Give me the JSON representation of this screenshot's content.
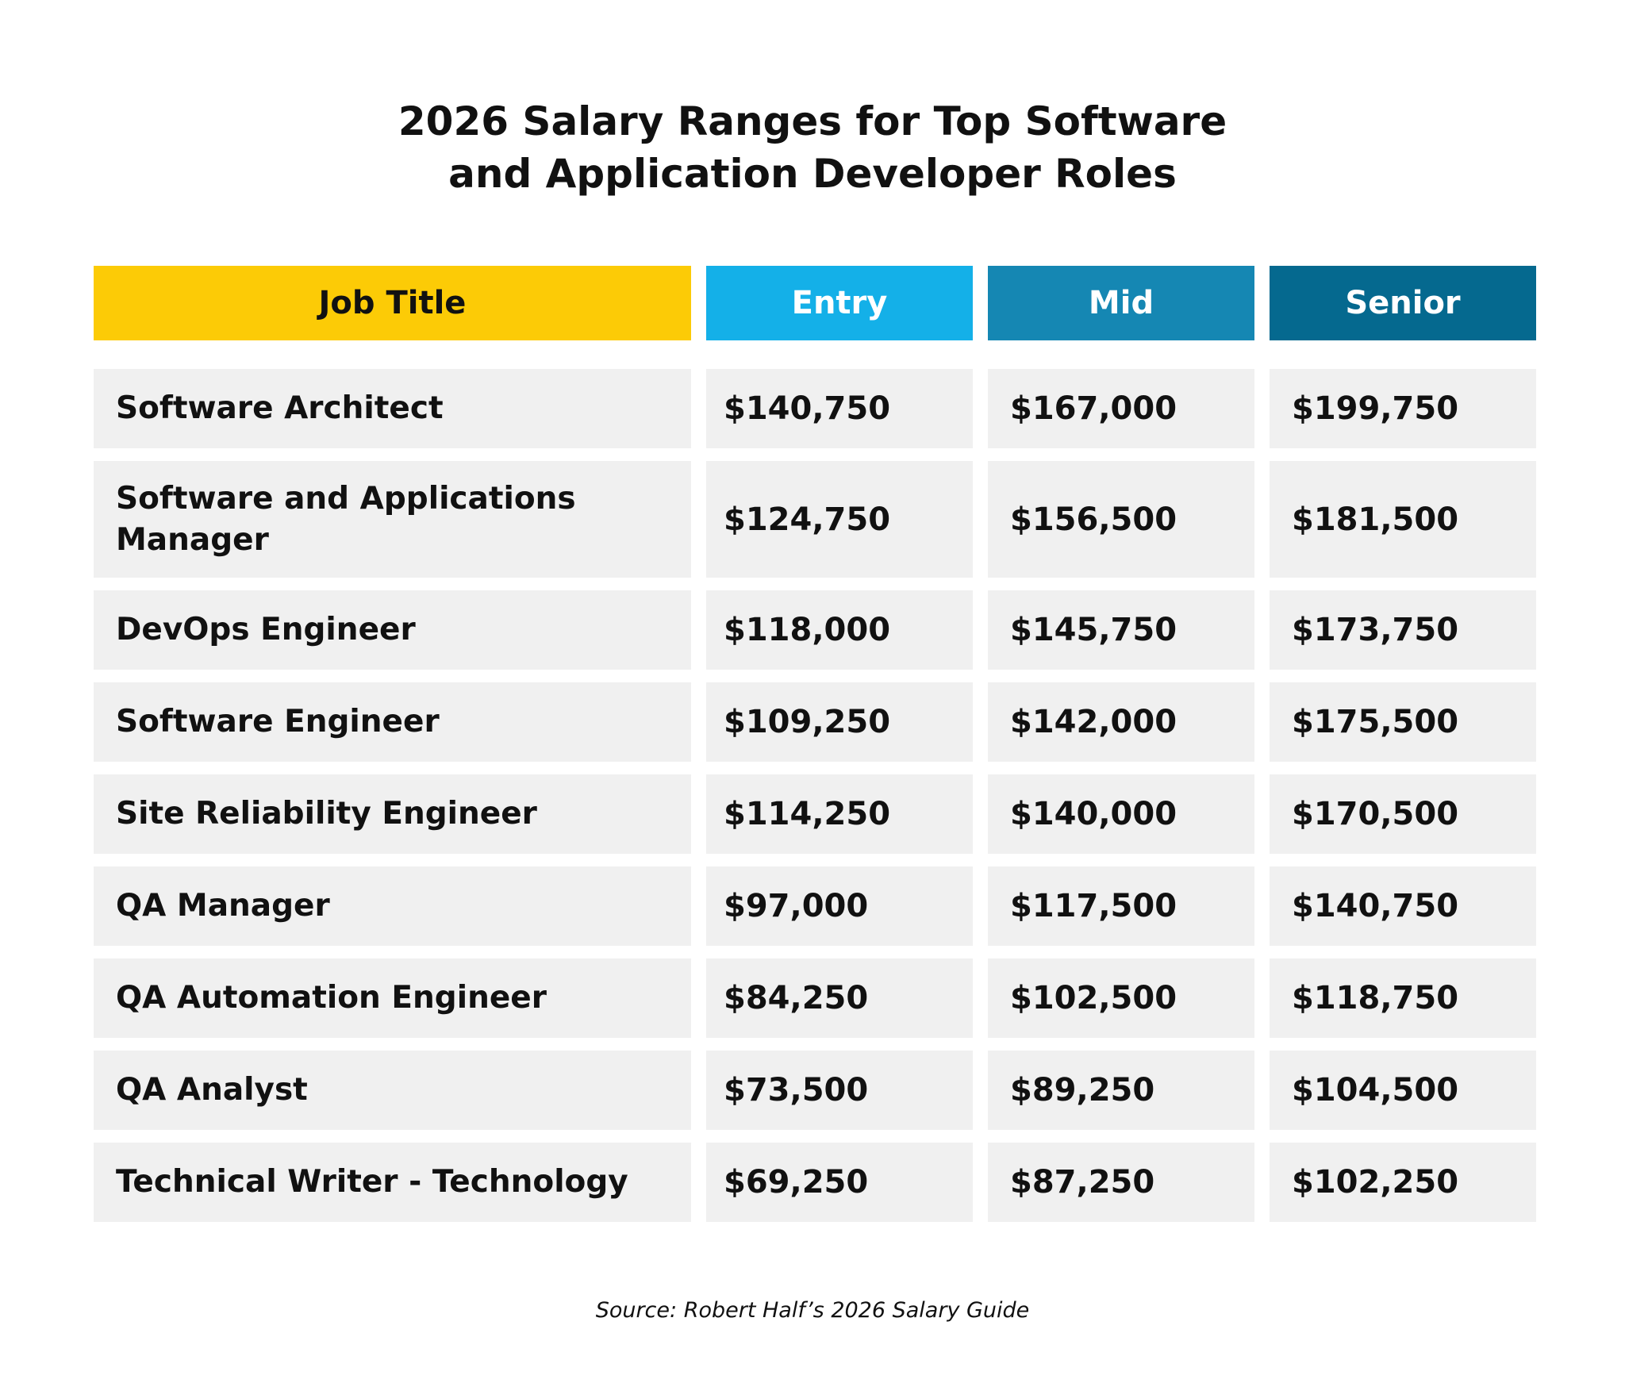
{
  "title_lines": [
    "2026 Salary Ranges for Top Software",
    "and Application Developer Roles"
  ],
  "columns": [
    {
      "label": "Job Title",
      "bg": "#fccb06",
      "fg": "#111111"
    },
    {
      "label": "Entry",
      "bg": "#14b0e8",
      "fg": "#ffffff"
    },
    {
      "label": "Mid",
      "bg": "#1587b3",
      "fg": "#ffffff"
    },
    {
      "label": "Senior",
      "bg": "#05698f",
      "fg": "#ffffff"
    }
  ],
  "rows": [
    {
      "job": "Software Architect",
      "entry": "$140,750",
      "mid": "$167,000",
      "senior": "$199,750"
    },
    {
      "job": "Software and Applications Manager",
      "entry": "$124,750",
      "mid": "$156,500",
      "senior": "$181,500"
    },
    {
      "job": "DevOps Engineer",
      "entry": "$118,000",
      "mid": "$145,750",
      "senior": "$173,750"
    },
    {
      "job": "Software Engineer",
      "entry": "$109,250",
      "mid": "$142,000",
      "senior": "$175,500"
    },
    {
      "job": "Site Reliability Engineer",
      "entry": "$114,250",
      "mid": "$140,000",
      "senior": "$170,500"
    },
    {
      "job": "QA Manager",
      "entry": "$97,000",
      "mid": "$117,500",
      "senior": "$140,750"
    },
    {
      "job": "QA Automation Engineer",
      "entry": "$84,250",
      "mid": "$102,500",
      "senior": "$118,750"
    },
    {
      "job": "QA Analyst",
      "entry": "$73,500",
      "mid": "$89,250",
      "senior": "$104,500"
    },
    {
      "job": "Technical Writer - Technology",
      "entry": "$69,250",
      "mid": "$87,250",
      "senior": "$102,250"
    }
  ],
  "source": "Source: Robert Half’s 2026 Salary Guide",
  "chart_data": {
    "type": "table",
    "title": "2026 Salary Ranges for Top Software and Application Developer Roles",
    "columns": [
      "Job Title",
      "Entry",
      "Mid",
      "Senior"
    ],
    "rows": [
      [
        "Software Architect",
        140750,
        167000,
        199750
      ],
      [
        "Software and Applications Manager",
        124750,
        156500,
        181500
      ],
      [
        "DevOps Engineer",
        118000,
        145750,
        173750
      ],
      [
        "Software Engineer",
        109250,
        142000,
        175500
      ],
      [
        "Site Reliability Engineer",
        114250,
        140000,
        170500
      ],
      [
        "QA Manager",
        97000,
        117500,
        140750
      ],
      [
        "QA Automation Engineer",
        84250,
        102500,
        118750
      ],
      [
        "QA Analyst",
        73500,
        89250,
        104500
      ],
      [
        "Technical Writer - Technology",
        69250,
        87250,
        102250
      ]
    ],
    "source": "Source: Robert Half’s 2026 Salary Guide"
  }
}
